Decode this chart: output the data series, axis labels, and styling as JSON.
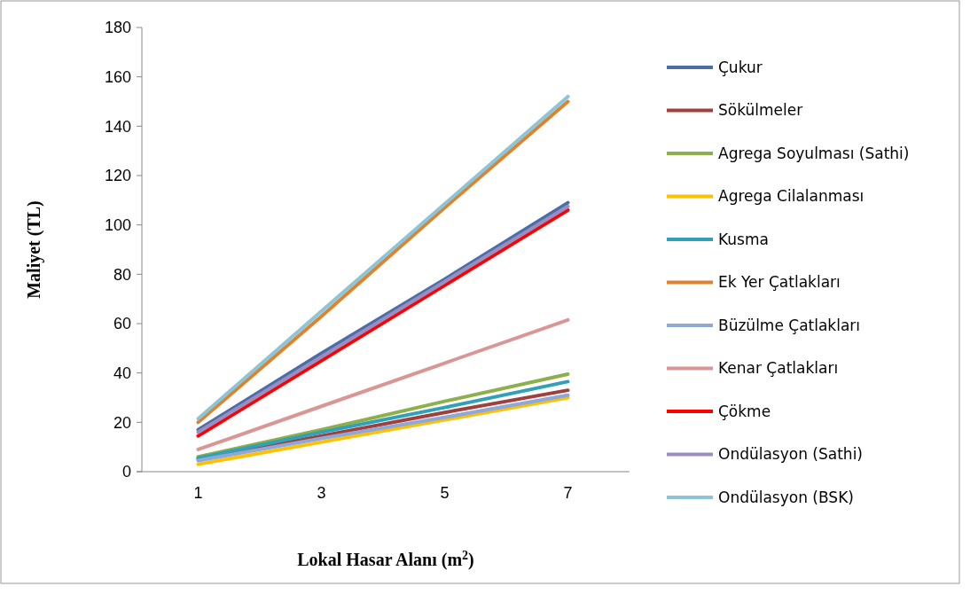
{
  "chart_data": {
    "type": "line",
    "xlabel": "Lokal Hasar Alanı (m$^{2}$)",
    "ylabel": "Maliyet (TL)",
    "x": [
      1,
      3,
      5,
      7
    ],
    "xlim": [
      0,
      8
    ],
    "xticks": [
      1,
      3,
      5,
      7
    ],
    "ylim": [
      0,
      180
    ],
    "yticks": [
      0,
      20,
      40,
      60,
      80,
      100,
      120,
      140,
      160,
      180
    ],
    "grid": false,
    "legend": "right",
    "marker": "none",
    "line_style": "solid",
    "series": [
      {
        "name": "Çukur",
        "color": "#4a6fa8",
        "values": [
          17,
          48,
          78,
          109
        ]
      },
      {
        "name": "Sökülmeler",
        "color": "#a0403c",
        "values": [
          5,
          14.5,
          24,
          33
        ]
      },
      {
        "name": "Agrega Soyulması (Sathi)",
        "color": "#8cb04a",
        "values": [
          6,
          17,
          28.5,
          39.5
        ]
      },
      {
        "name": "Agrega Cilalanması",
        "color": "#ffc000",
        "values": [
          3,
          12,
          21,
          30
        ]
      },
      {
        "name": "Kusma",
        "color": "#31a0b8",
        "values": [
          5.5,
          16,
          26,
          36.5
        ]
      },
      {
        "name": "Ek Yer Çatlakları",
        "color": "#e0822c",
        "values": [
          20,
          63,
          107,
          150
        ]
      },
      {
        "name": "Büzülme Çatlakları",
        "color": "#8ea9d8",
        "values": [
          4.5,
          13.5,
          22,
          31
        ]
      },
      {
        "name": "Kenar Çatlakları",
        "color": "#d99694",
        "values": [
          9,
          26.5,
          44,
          61.5
        ]
      },
      {
        "name": "Çökme",
        "color": "#ff0000",
        "values": [
          14.5,
          45,
          75.5,
          106
        ]
      },
      {
        "name": "Ondülasyon (Sathi)",
        "color": "#9d8cbf",
        "values": [
          16,
          46.5,
          77,
          107.5
        ]
      },
      {
        "name": "Ondülasyon (BSK)",
        "color": "#8cc4d8",
        "values": [
          21.5,
          65,
          108.5,
          152
        ]
      }
    ]
  }
}
